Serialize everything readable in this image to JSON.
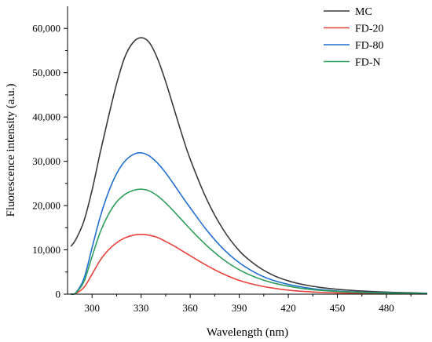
{
  "chart_data": {
    "type": "line",
    "title": "",
    "xlabel": "Wavelength (nm)",
    "ylabel": "Fluorescence intensity (a.u.)",
    "xlim": [
      285,
      505
    ],
    "ylim": [
      0,
      65000
    ],
    "x_ticks": [
      "300",
      "330",
      "360",
      "390",
      "420",
      "450",
      "480"
    ],
    "y_ticks": [
      "0",
      "10,000",
      "20,000",
      "30,000",
      "40,000",
      "50,000",
      "60,000"
    ],
    "grid": false,
    "legend_position": "top-right",
    "series": [
      {
        "name": "MC",
        "color": "#3a3a3a",
        "x": [
          287,
          290,
          295,
          300,
          305,
          310,
          315,
          320,
          325,
          330,
          335,
          340,
          345,
          350,
          355,
          360,
          370,
          380,
          390,
          400,
          410,
          420,
          430,
          440,
          450,
          460,
          470,
          480,
          490,
          500,
          505
        ],
        "y": [
          10800,
          12300,
          16500,
          23500,
          32000,
          40000,
          47500,
          53500,
          56800,
          57900,
          56800,
          53200,
          48000,
          42000,
          36000,
          30500,
          21500,
          14700,
          9800,
          6600,
          4400,
          3000,
          2100,
          1500,
          1100,
          800,
          600,
          450,
          350,
          250,
          200
        ]
      },
      {
        "name": "FD-20",
        "color": "#e8413c",
        "x": [
          287,
          290,
          295,
          300,
          305,
          310,
          315,
          320,
          325,
          330,
          335,
          340,
          345,
          350,
          355,
          360,
          370,
          380,
          390,
          400,
          410,
          420,
          430,
          440,
          450,
          460,
          470,
          480,
          490,
          500,
          505
        ],
        "y": [
          0,
          150,
          1500,
          4500,
          7700,
          10000,
          11600,
          12700,
          13300,
          13500,
          13300,
          12800,
          11900,
          10900,
          9800,
          8700,
          6500,
          4600,
          3100,
          2100,
          1400,
          900,
          600,
          400,
          280,
          200,
          150,
          120,
          100,
          80,
          70
        ]
      },
      {
        "name": "FD-80",
        "color": "#1f6fd1",
        "x": [
          287,
          290,
          295,
          300,
          305,
          310,
          315,
          320,
          325,
          330,
          335,
          340,
          345,
          350,
          355,
          360,
          370,
          380,
          390,
          400,
          410,
          420,
          430,
          440,
          450,
          460,
          470,
          480,
          490,
          500,
          505
        ],
        "y": [
          0,
          300,
          3500,
          10500,
          17500,
          23000,
          27200,
          30000,
          31500,
          31900,
          31200,
          29600,
          27400,
          24800,
          22100,
          19500,
          14500,
          10300,
          7100,
          4800,
          3200,
          2200,
          1500,
          1000,
          700,
          500,
          380,
          290,
          230,
          180,
          160
        ]
      },
      {
        "name": "FD-N",
        "color": "#2e9e5b",
        "x": [
          287,
          290,
          295,
          300,
          305,
          310,
          315,
          320,
          325,
          330,
          335,
          340,
          345,
          350,
          355,
          360,
          370,
          380,
          390,
          400,
          410,
          420,
          430,
          440,
          450,
          460,
          470,
          480,
          490,
          500,
          505
        ],
        "y": [
          0,
          250,
          2800,
          8500,
          14000,
          18000,
          20800,
          22500,
          23400,
          23700,
          23300,
          22200,
          20600,
          18700,
          16700,
          14700,
          11000,
          7900,
          5500,
          3800,
          2600,
          1800,
          1200,
          850,
          600,
          430,
          320,
          250,
          200,
          160,
          140
        ]
      }
    ]
  }
}
